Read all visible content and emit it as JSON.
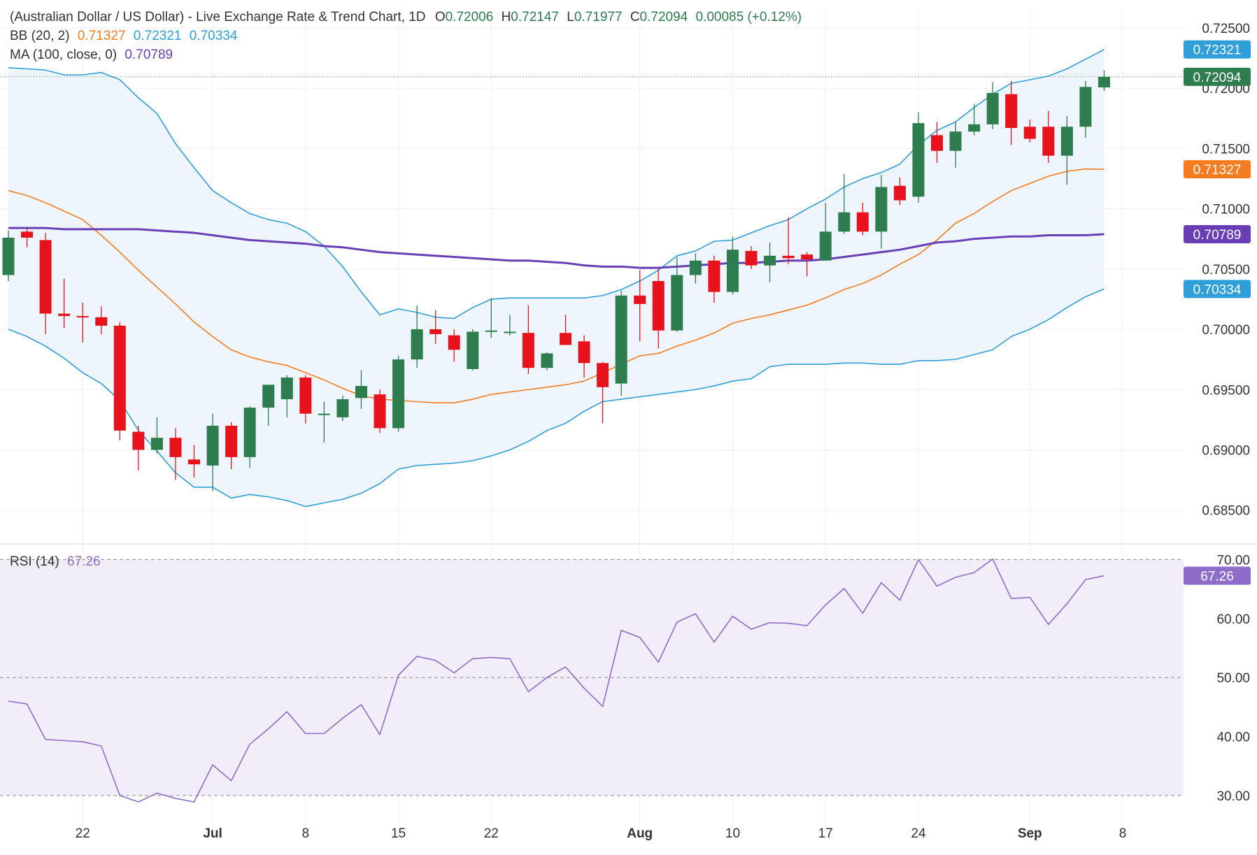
{
  "header": {
    "title": "(Australian Dollar / US Dollar) - Live Exchange Rate & Trend Chart, 1D",
    "ohlc": {
      "o_label": "O",
      "o": "0.72006",
      "h_label": "H",
      "h": "0.72147",
      "l_label": "L",
      "l": "0.71977",
      "c_label": "C",
      "c": "0.72094",
      "change": "0.00085 (+0.12%)"
    },
    "bb": {
      "label": "BB (20, 2)",
      "middle": "0.71327",
      "upper": "0.72321",
      "lower": "0.70334"
    },
    "ma": {
      "label": "MA (100, close, 0)",
      "value": "0.70789"
    },
    "rsi": {
      "label": "RSI (14)",
      "value": "67.26"
    }
  },
  "colors": {
    "up": "#2e7d4f",
    "down": "#e8121d",
    "bb_upper_lower": "#2f9fd8",
    "bb_middle": "#f57c1f",
    "ma": "#6a3fb5",
    "rsi": "#8e6cc9",
    "band_fill": "#eef5fc",
    "rsi_fill": "#f2eef9",
    "last_price": "#2e7d4f"
  },
  "chart_data": [
    {
      "type": "candlestick",
      "title": "(Australian Dollar / US Dollar) - Live Exchange Rate & Trend Chart, 1D",
      "x_ticks": [
        {
          "label": "22",
          "index": 4
        },
        {
          "label": "Jul",
          "index": 11
        },
        {
          "label": "8",
          "index": 16
        },
        {
          "label": "15",
          "index": 21
        },
        {
          "label": "22",
          "index": 26
        },
        {
          "label": "Aug",
          "index": 34
        },
        {
          "label": "10",
          "index": 39
        },
        {
          "label": "17",
          "index": 44
        },
        {
          "label": "24",
          "index": 49
        },
        {
          "label": "Sep",
          "index": 55
        },
        {
          "label": "8",
          "index": 60
        }
      ],
      "y_ticks": [
        "0.72500",
        "0.72000",
        "0.71500",
        "0.71000",
        "0.70500",
        "0.70000",
        "0.69500",
        "0.69000",
        "0.68500"
      ],
      "ylim": [
        0.6822,
        0.7265
      ],
      "last_price": 0.72094,
      "candles": [
        {
          "o": 0.7045,
          "h": 0.7082,
          "l": 0.704,
          "c": 0.7076
        },
        {
          "o": 0.7081,
          "h": 0.7084,
          "l": 0.7068,
          "c": 0.7076
        },
        {
          "o": 0.7074,
          "h": 0.708,
          "l": 0.6996,
          "c": 0.7013
        },
        {
          "o": 0.7013,
          "h": 0.7042,
          "l": 0.7001,
          "c": 0.7011
        },
        {
          "o": 0.7011,
          "h": 0.7022,
          "l": 0.6989,
          "c": 0.701
        },
        {
          "o": 0.701,
          "h": 0.7019,
          "l": 0.6996,
          "c": 0.7003
        },
        {
          "o": 0.7003,
          "h": 0.7006,
          "l": 0.6908,
          "c": 0.6916
        },
        {
          "o": 0.6915,
          "h": 0.692,
          "l": 0.6883,
          "c": 0.69
        },
        {
          "o": 0.69,
          "h": 0.6927,
          "l": 0.6897,
          "c": 0.691
        },
        {
          "o": 0.691,
          "h": 0.6918,
          "l": 0.6875,
          "c": 0.6894
        },
        {
          "o": 0.6892,
          "h": 0.6904,
          "l": 0.6877,
          "c": 0.6888
        },
        {
          "o": 0.6887,
          "h": 0.693,
          "l": 0.6866,
          "c": 0.692
        },
        {
          "o": 0.692,
          "h": 0.6923,
          "l": 0.6884,
          "c": 0.6894
        },
        {
          "o": 0.6894,
          "h": 0.6936,
          "l": 0.6885,
          "c": 0.6935
        },
        {
          "o": 0.6935,
          "h": 0.6954,
          "l": 0.692,
          "c": 0.6954
        },
        {
          "o": 0.6942,
          "h": 0.6962,
          "l": 0.6927,
          "c": 0.696
        },
        {
          "o": 0.696,
          "h": 0.6962,
          "l": 0.6922,
          "c": 0.693
        },
        {
          "o": 0.693,
          "h": 0.694,
          "l": 0.6906,
          "c": 0.693
        },
        {
          "o": 0.6927,
          "h": 0.6945,
          "l": 0.6924,
          "c": 0.6942
        },
        {
          "o": 0.6943,
          "h": 0.6966,
          "l": 0.6934,
          "c": 0.6953
        },
        {
          "o": 0.6946,
          "h": 0.695,
          "l": 0.6914,
          "c": 0.6918
        },
        {
          "o": 0.6918,
          "h": 0.6978,
          "l": 0.6915,
          "c": 0.6975
        },
        {
          "o": 0.6975,
          "h": 0.702,
          "l": 0.6968,
          "c": 0.7
        },
        {
          "o": 0.7,
          "h": 0.7016,
          "l": 0.6988,
          "c": 0.6996
        },
        {
          "o": 0.6995,
          "h": 0.7,
          "l": 0.6973,
          "c": 0.6983
        },
        {
          "o": 0.6967,
          "h": 0.7,
          "l": 0.6966,
          "c": 0.6998
        },
        {
          "o": 0.6999,
          "h": 0.7026,
          "l": 0.6993,
          "c": 0.6999
        },
        {
          "o": 0.6998,
          "h": 0.7012,
          "l": 0.6995,
          "c": 0.6998
        },
        {
          "o": 0.6997,
          "h": 0.702,
          "l": 0.6963,
          "c": 0.6968
        },
        {
          "o": 0.6968,
          "h": 0.6981,
          "l": 0.6966,
          "c": 0.698
        },
        {
          "o": 0.6997,
          "h": 0.7012,
          "l": 0.6987,
          "c": 0.6987
        },
        {
          "o": 0.699,
          "h": 0.6995,
          "l": 0.696,
          "c": 0.6972
        },
        {
          "o": 0.6972,
          "h": 0.6973,
          "l": 0.6922,
          "c": 0.6952
        },
        {
          "o": 0.6955,
          "h": 0.7032,
          "l": 0.6945,
          "c": 0.7028
        },
        {
          "o": 0.7028,
          "h": 0.7049,
          "l": 0.699,
          "c": 0.7021
        },
        {
          "o": 0.704,
          "h": 0.705,
          "l": 0.6984,
          "c": 0.6999
        },
        {
          "o": 0.6999,
          "h": 0.706,
          "l": 0.6998,
          "c": 0.7045
        },
        {
          "o": 0.7045,
          "h": 0.7063,
          "l": 0.7038,
          "c": 0.7057
        },
        {
          "o": 0.7057,
          "h": 0.7061,
          "l": 0.7022,
          "c": 0.7031
        },
        {
          "o": 0.7031,
          "h": 0.7077,
          "l": 0.7029,
          "c": 0.7066
        },
        {
          "o": 0.7065,
          "h": 0.7069,
          "l": 0.705,
          "c": 0.7053
        },
        {
          "o": 0.7053,
          "h": 0.7072,
          "l": 0.7039,
          "c": 0.7061
        },
        {
          "o": 0.7061,
          "h": 0.7093,
          "l": 0.7054,
          "c": 0.7059
        },
        {
          "o": 0.7062,
          "h": 0.7064,
          "l": 0.7044,
          "c": 0.7058
        },
        {
          "o": 0.7057,
          "h": 0.7105,
          "l": 0.7057,
          "c": 0.7081
        },
        {
          "o": 0.7081,
          "h": 0.7129,
          "l": 0.7079,
          "c": 0.7097
        },
        {
          "o": 0.7097,
          "h": 0.7105,
          "l": 0.7078,
          "c": 0.7081
        },
        {
          "o": 0.7081,
          "h": 0.7128,
          "l": 0.7067,
          "c": 0.7118
        },
        {
          "o": 0.7119,
          "h": 0.7126,
          "l": 0.7103,
          "c": 0.7107
        },
        {
          "o": 0.711,
          "h": 0.718,
          "l": 0.7105,
          "c": 0.7171
        },
        {
          "o": 0.7161,
          "h": 0.7172,
          "l": 0.7138,
          "c": 0.7148
        },
        {
          "o": 0.7148,
          "h": 0.7172,
          "l": 0.7134,
          "c": 0.7164
        },
        {
          "o": 0.7164,
          "h": 0.7187,
          "l": 0.7161,
          "c": 0.717
        },
        {
          "o": 0.717,
          "h": 0.7205,
          "l": 0.7166,
          "c": 0.7196
        },
        {
          "o": 0.7195,
          "h": 0.7206,
          "l": 0.7153,
          "c": 0.7167
        },
        {
          "o": 0.7168,
          "h": 0.7174,
          "l": 0.7155,
          "c": 0.7158
        },
        {
          "o": 0.7168,
          "h": 0.7181,
          "l": 0.7138,
          "c": 0.7144
        },
        {
          "o": 0.7144,
          "h": 0.7177,
          "l": 0.712,
          "c": 0.7168
        },
        {
          "o": 0.7168,
          "h": 0.7206,
          "l": 0.7159,
          "c": 0.7201
        },
        {
          "o": 0.72006,
          "h": 0.72147,
          "l": 0.71977,
          "c": 0.72094
        }
      ],
      "bb_upper": [
        0.7217,
        0.7216,
        0.7215,
        0.7211,
        0.7211,
        0.7213,
        0.7207,
        0.7192,
        0.7179,
        0.7154,
        0.7134,
        0.7115,
        0.7105,
        0.7096,
        0.7091,
        0.7088,
        0.7081,
        0.7069,
        0.7052,
        0.7031,
        0.7012,
        0.7017,
        0.7014,
        0.701,
        0.7009,
        0.7018,
        0.7025,
        0.7026,
        0.7026,
        0.7026,
        0.7026,
        0.7026,
        0.7028,
        0.7033,
        0.704,
        0.7049,
        0.7061,
        0.7065,
        0.7073,
        0.7074,
        0.708,
        0.7086,
        0.7091,
        0.71,
        0.7108,
        0.7118,
        0.7125,
        0.713,
        0.7137,
        0.7153,
        0.7165,
        0.7172,
        0.7184,
        0.7195,
        0.7204,
        0.7207,
        0.721,
        0.7216,
        0.7224,
        0.72321
      ],
      "bb_middle": [
        0.7115,
        0.7111,
        0.7105,
        0.7098,
        0.7091,
        0.7078,
        0.7064,
        0.7049,
        0.7035,
        0.7021,
        0.7006,
        0.6994,
        0.6983,
        0.6977,
        0.6973,
        0.697,
        0.6964,
        0.6958,
        0.6951,
        0.6945,
        0.6942,
        0.6941,
        0.694,
        0.6939,
        0.6939,
        0.6942,
        0.6946,
        0.6948,
        0.695,
        0.6952,
        0.6954,
        0.6957,
        0.6964,
        0.6971,
        0.6978,
        0.698,
        0.6986,
        0.6991,
        0.6997,
        0.7005,
        0.7009,
        0.7012,
        0.7016,
        0.702,
        0.7026,
        0.7033,
        0.7038,
        0.7045,
        0.7054,
        0.7062,
        0.7074,
        0.7088,
        0.7096,
        0.7106,
        0.7115,
        0.7121,
        0.7127,
        0.7131,
        0.7133,
        0.71327
      ],
      "bb_lower": [
        0.7,
        0.6994,
        0.6986,
        0.6976,
        0.6964,
        0.6955,
        0.6941,
        0.6916,
        0.6899,
        0.6881,
        0.6869,
        0.6869,
        0.686,
        0.6863,
        0.6861,
        0.6858,
        0.6853,
        0.6856,
        0.6859,
        0.6864,
        0.6872,
        0.6884,
        0.6887,
        0.6888,
        0.6889,
        0.6891,
        0.6895,
        0.69,
        0.6907,
        0.6916,
        0.6922,
        0.6932,
        0.694,
        0.6942,
        0.6944,
        0.6946,
        0.6948,
        0.695,
        0.6953,
        0.6957,
        0.6959,
        0.6969,
        0.6971,
        0.6971,
        0.6971,
        0.6972,
        0.6972,
        0.6971,
        0.6971,
        0.6974,
        0.6974,
        0.6975,
        0.6979,
        0.6983,
        0.6994,
        0.7,
        0.7008,
        0.7018,
        0.7027,
        0.70334
      ],
      "ma": [
        0.7084,
        0.7084,
        0.7084,
        0.7083,
        0.7083,
        0.7083,
        0.7083,
        0.7083,
        0.7082,
        0.7081,
        0.708,
        0.7078,
        0.7076,
        0.7074,
        0.7073,
        0.7072,
        0.7071,
        0.7069,
        0.7068,
        0.7066,
        0.7064,
        0.7063,
        0.7062,
        0.7061,
        0.706,
        0.7059,
        0.7058,
        0.7057,
        0.7057,
        0.7056,
        0.7055,
        0.7053,
        0.7052,
        0.7052,
        0.7051,
        0.7051,
        0.7052,
        0.7053,
        0.7054,
        0.7055,
        0.7055,
        0.7056,
        0.7057,
        0.7057,
        0.7058,
        0.706,
        0.7062,
        0.7064,
        0.7066,
        0.7069,
        0.7072,
        0.7073,
        0.7075,
        0.7076,
        0.7077,
        0.7077,
        0.7078,
        0.7078,
        0.7078,
        0.70789
      ]
    },
    {
      "type": "line",
      "title": "RSI (14)",
      "y_ticks": [
        "70.00",
        "60.00",
        "50.00",
        "40.00",
        "30.00"
      ],
      "ylim": [
        25.0,
        71.0
      ],
      "reference_lines": [
        70,
        50,
        30
      ],
      "values": [
        46.0,
        45.5,
        39.5,
        39.3,
        39.1,
        38.4,
        30.0,
        28.9,
        30.4,
        29.5,
        28.9,
        35.2,
        32.5,
        38.7,
        41.3,
        44.2,
        40.5,
        40.5,
        43.1,
        45.4,
        40.3,
        50.4,
        53.6,
        52.9,
        50.8,
        53.2,
        53.4,
        53.2,
        47.6,
        50.0,
        51.8,
        48.2,
        45.1,
        58.0,
        56.8,
        52.6,
        59.4,
        60.8,
        56.0,
        60.4,
        58.2,
        59.3,
        59.2,
        58.8,
        62.3,
        65.1,
        60.9,
        66.1,
        63.1,
        70.0,
        65.5,
        67.0,
        67.8,
        70.1,
        63.4,
        63.6,
        59.0,
        62.5,
        66.6,
        67.26
      ]
    }
  ]
}
